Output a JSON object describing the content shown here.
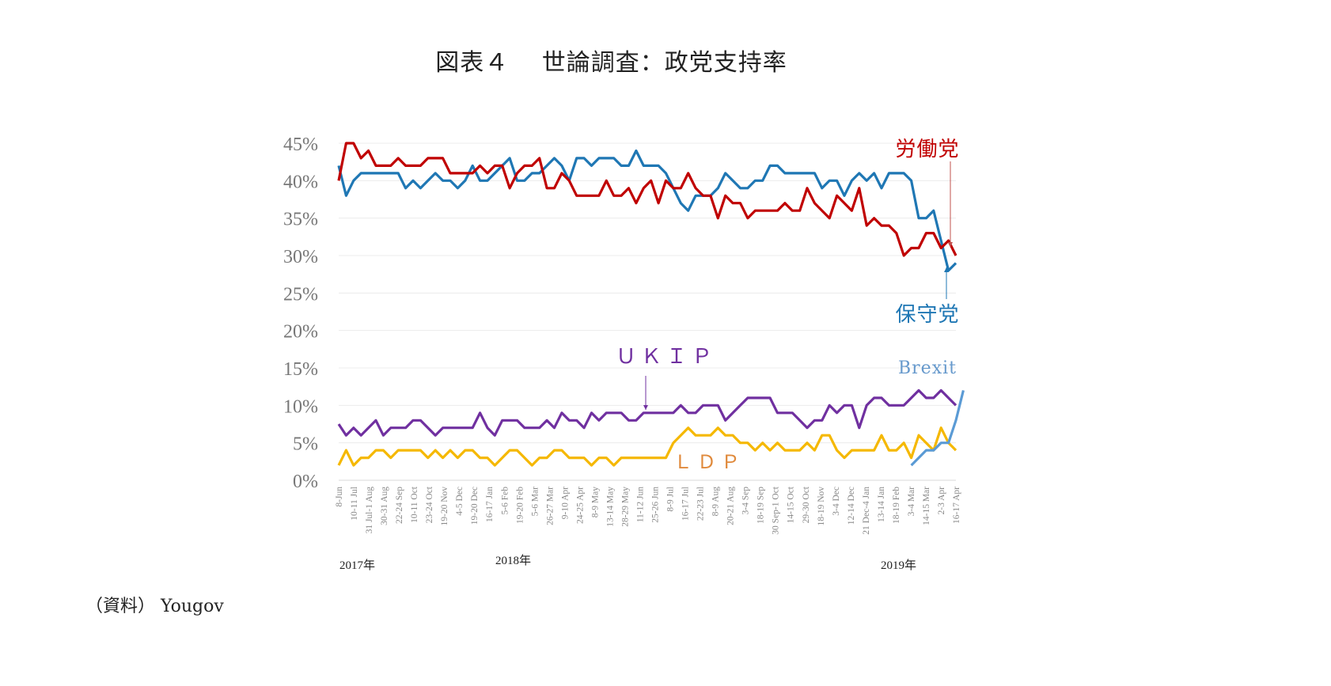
{
  "title": "図表４　 世論調査：政党支持率",
  "source": "（資料） Yougov",
  "chart_data": {
    "type": "line",
    "title": "図表４　世論調査：政党支持率",
    "xlabel": "",
    "ylabel": "",
    "ylim": [
      0,
      45
    ],
    "yticks": [
      "0%",
      "5%",
      "10%",
      "15%",
      "20%",
      "25%",
      "30%",
      "35%",
      "40%",
      "45%"
    ],
    "grid": true,
    "x_tick_labels": [
      "8-Jun",
      "10-11 Jul",
      "31 Jul-1 Aug",
      "30-31 Aug",
      "22-24 Sep",
      "10-11 Oct",
      "23-24 Oct",
      "19-20 Nov",
      "4-5 Dec",
      "19-20 Dec",
      "16-17 Jan",
      "5-6 Feb",
      "19-20 Feb",
      "5-6 Mar",
      "26-27 Mar",
      "9-10 Apr",
      "24-25 Apr",
      "8-9 May",
      "13-14 May",
      "28-29 May",
      "11-12 Jun",
      "25-26 Jun",
      "8-9 Jul",
      "16-17 Jul",
      "22-23 Jul",
      "8-9 Aug",
      "20-21 Aug",
      "3-4 Sep",
      "18-19 Sep",
      "30 Sep-1 Oct",
      "14-15 Oct",
      "29-30 Oct",
      "18-19 Nov",
      "3-4 Dec",
      "12-14 Dec",
      "21 Dec-4 Jan",
      "13-14 Jan",
      "18-19 Feb",
      "3-4 Mar",
      "14-15 Mar",
      "2-3 Apr",
      "16-17 Apr"
    ],
    "year_labels": [
      "2017年",
      "2018年",
      "2019年"
    ],
    "series": [
      {
        "name": "労働党",
        "color": "#c00000",
        "values": [
          40,
          46,
          46,
          43,
          44,
          42,
          42,
          42,
          43,
          42,
          42,
          42,
          43,
          43,
          43,
          41,
          41,
          41,
          41,
          42,
          41,
          42,
          42,
          39,
          41,
          42,
          42,
          43,
          39,
          39,
          41,
          40,
          38,
          38,
          38,
          38,
          40,
          38,
          38,
          39,
          37,
          39,
          40,
          37,
          40,
          39,
          39,
          41,
          39,
          38,
          38,
          35,
          38,
          37,
          37,
          35,
          36,
          36,
          36,
          36,
          37,
          36,
          36,
          39,
          37,
          36,
          35,
          38,
          37,
          36,
          39,
          34,
          35,
          34,
          34,
          33,
          30,
          31,
          31,
          33,
          33,
          31,
          32,
          30
        ]
      },
      {
        "name": "保守党",
        "color": "#1f77b4",
        "values": [
          42,
          38,
          40,
          41,
          41,
          41,
          41,
          41,
          41,
          39,
          40,
          39,
          40,
          41,
          40,
          40,
          39,
          40,
          42,
          40,
          40,
          41,
          42,
          43,
          40,
          40,
          41,
          41,
          42,
          43,
          42,
          40,
          43,
          43,
          42,
          43,
          43,
          43,
          42,
          42,
          44,
          42,
          42,
          42,
          41,
          39,
          37,
          36,
          38,
          38,
          38,
          39,
          41,
          40,
          39,
          39,
          40,
          40,
          42,
          42,
          41,
          41,
          41,
          41,
          41,
          39,
          40,
          40,
          38,
          40,
          41,
          40,
          41,
          39,
          41,
          41,
          41,
          40,
          35,
          35,
          36,
          32,
          28,
          29
        ]
      },
      {
        "name": "UKIP",
        "color": "#7030a0",
        "values": [
          7.5,
          6,
          7,
          6,
          7,
          8,
          6,
          7,
          7,
          7,
          8,
          8,
          7,
          6,
          7,
          7,
          7,
          7,
          7,
          9,
          7,
          6,
          8,
          8,
          8,
          7,
          7,
          7,
          8,
          7,
          9,
          8,
          8,
          7,
          9,
          8,
          9,
          9,
          9,
          8,
          8,
          9,
          9,
          9,
          9,
          9,
          10,
          9,
          9,
          10,
          10,
          10,
          8,
          9,
          10,
          11,
          11,
          11,
          11,
          9,
          9,
          9,
          8,
          7,
          8,
          8,
          10,
          9,
          10,
          10,
          7,
          10,
          11,
          11,
          10,
          10,
          10,
          11,
          12,
          11,
          11,
          12,
          11,
          10
        ]
      },
      {
        "name": "LDP",
        "color": "#f5b800",
        "values": [
          2,
          4,
          2,
          3,
          3,
          4,
          4,
          3,
          4,
          4,
          4,
          4,
          3,
          4,
          3,
          4,
          3,
          4,
          4,
          3,
          3,
          2,
          3,
          4,
          4,
          3,
          2,
          3,
          3,
          4,
          4,
          3,
          3,
          3,
          2,
          3,
          3,
          2,
          3,
          3,
          3,
          3,
          3,
          3,
          3,
          5,
          6,
          7,
          6,
          6,
          6,
          7,
          6,
          6,
          5,
          5,
          4,
          5,
          4,
          5,
          4,
          4,
          4,
          5,
          4,
          6,
          6,
          4,
          3,
          4,
          4,
          4,
          4,
          6,
          4,
          4,
          5,
          3,
          6,
          5,
          4,
          7,
          5,
          4
        ]
      },
      {
        "name": "Brexit",
        "color": "#5b9bd5",
        "values": [
          null,
          null,
          null,
          null,
          null,
          null,
          null,
          null,
          null,
          null,
          null,
          null,
          null,
          null,
          null,
          null,
          null,
          null,
          null,
          null,
          null,
          null,
          null,
          null,
          null,
          null,
          null,
          null,
          null,
          null,
          null,
          null,
          null,
          null,
          null,
          null,
          null,
          null,
          null,
          null,
          null,
          null,
          null,
          null,
          null,
          null,
          null,
          null,
          null,
          null,
          null,
          null,
          null,
          null,
          null,
          null,
          null,
          null,
          null,
          null,
          null,
          null,
          null,
          null,
          null,
          null,
          null,
          null,
          null,
          null,
          null,
          null,
          null,
          null,
          null,
          null,
          null,
          2,
          3,
          4,
          4,
          5,
          5,
          8,
          12
        ]
      }
    ],
    "annotations": [
      {
        "text": "労働党",
        "color": "#c00000",
        "target": "労働党 last point",
        "arrow": true
      },
      {
        "text": "保守党",
        "color": "#1f77b4",
        "target": "保守党 minimum",
        "arrow": true
      },
      {
        "text": "ＵＫＩＰ",
        "color": "#7030a0",
        "target": "UKIP mid-2018",
        "arrow": true
      },
      {
        "text": "Brexit",
        "color": "#6699cc",
        "arrow": false
      },
      {
        "text": "ＬＤＰ",
        "color": "#e08a3c",
        "arrow": false
      }
    ]
  }
}
